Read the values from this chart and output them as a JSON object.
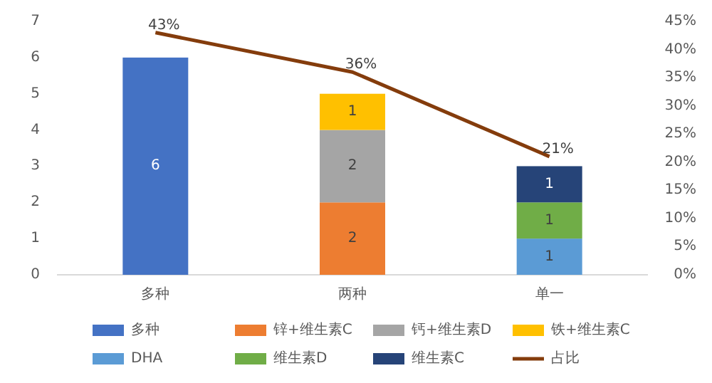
{
  "chart_data": {
    "type": "bar",
    "stacked": true,
    "categories": [
      "多种",
      "两种",
      "单一"
    ],
    "series": [
      {
        "name": "多种",
        "color": "#4472c4",
        "values": [
          6,
          null,
          null
        ]
      },
      {
        "name": "锌+维生素C",
        "color": "#ed7d31",
        "values": [
          null,
          2,
          null
        ]
      },
      {
        "name": "钙+维生素D",
        "color": "#a5a5a5",
        "values": [
          null,
          2,
          null
        ]
      },
      {
        "name": "铁+维生素C",
        "color": "#ffc000",
        "values": [
          null,
          1,
          null
        ]
      },
      {
        "name": "DHA",
        "color": "#5b9bd5",
        "values": [
          null,
          null,
          1
        ]
      },
      {
        "name": "维生素D",
        "color": "#70ad47",
        "values": [
          null,
          null,
          1
        ]
      },
      {
        "name": "维生素C",
        "color": "#264478",
        "values": [
          null,
          null,
          1
        ]
      },
      {
        "name": "占比",
        "type": "line",
        "axis": "y2",
        "color": "#843c0c",
        "values": [
          43,
          36,
          21
        ],
        "value_labels": [
          "43%",
          "36%",
          "21%"
        ]
      }
    ],
    "ylim": [
      0,
      7
    ],
    "yticks": [
      0,
      1,
      2,
      3,
      4,
      5,
      6,
      7
    ],
    "y2lim": [
      0,
      45
    ],
    "y2ticks": [
      {
        "value": 0,
        "label": "0%"
      },
      {
        "value": 5,
        "label": "5%"
      },
      {
        "value": 10,
        "label": "10%"
      },
      {
        "value": 15,
        "label": "15%"
      },
      {
        "value": 20,
        "label": "20%"
      },
      {
        "value": 25,
        "label": "25%"
      },
      {
        "value": 30,
        "label": "30%"
      },
      {
        "value": 35,
        "label": "35%"
      },
      {
        "value": 40,
        "label": "40%"
      },
      {
        "value": 45,
        "label": "45%"
      }
    ],
    "data_labels": true,
    "legend": "bottom",
    "grid": false
  }
}
